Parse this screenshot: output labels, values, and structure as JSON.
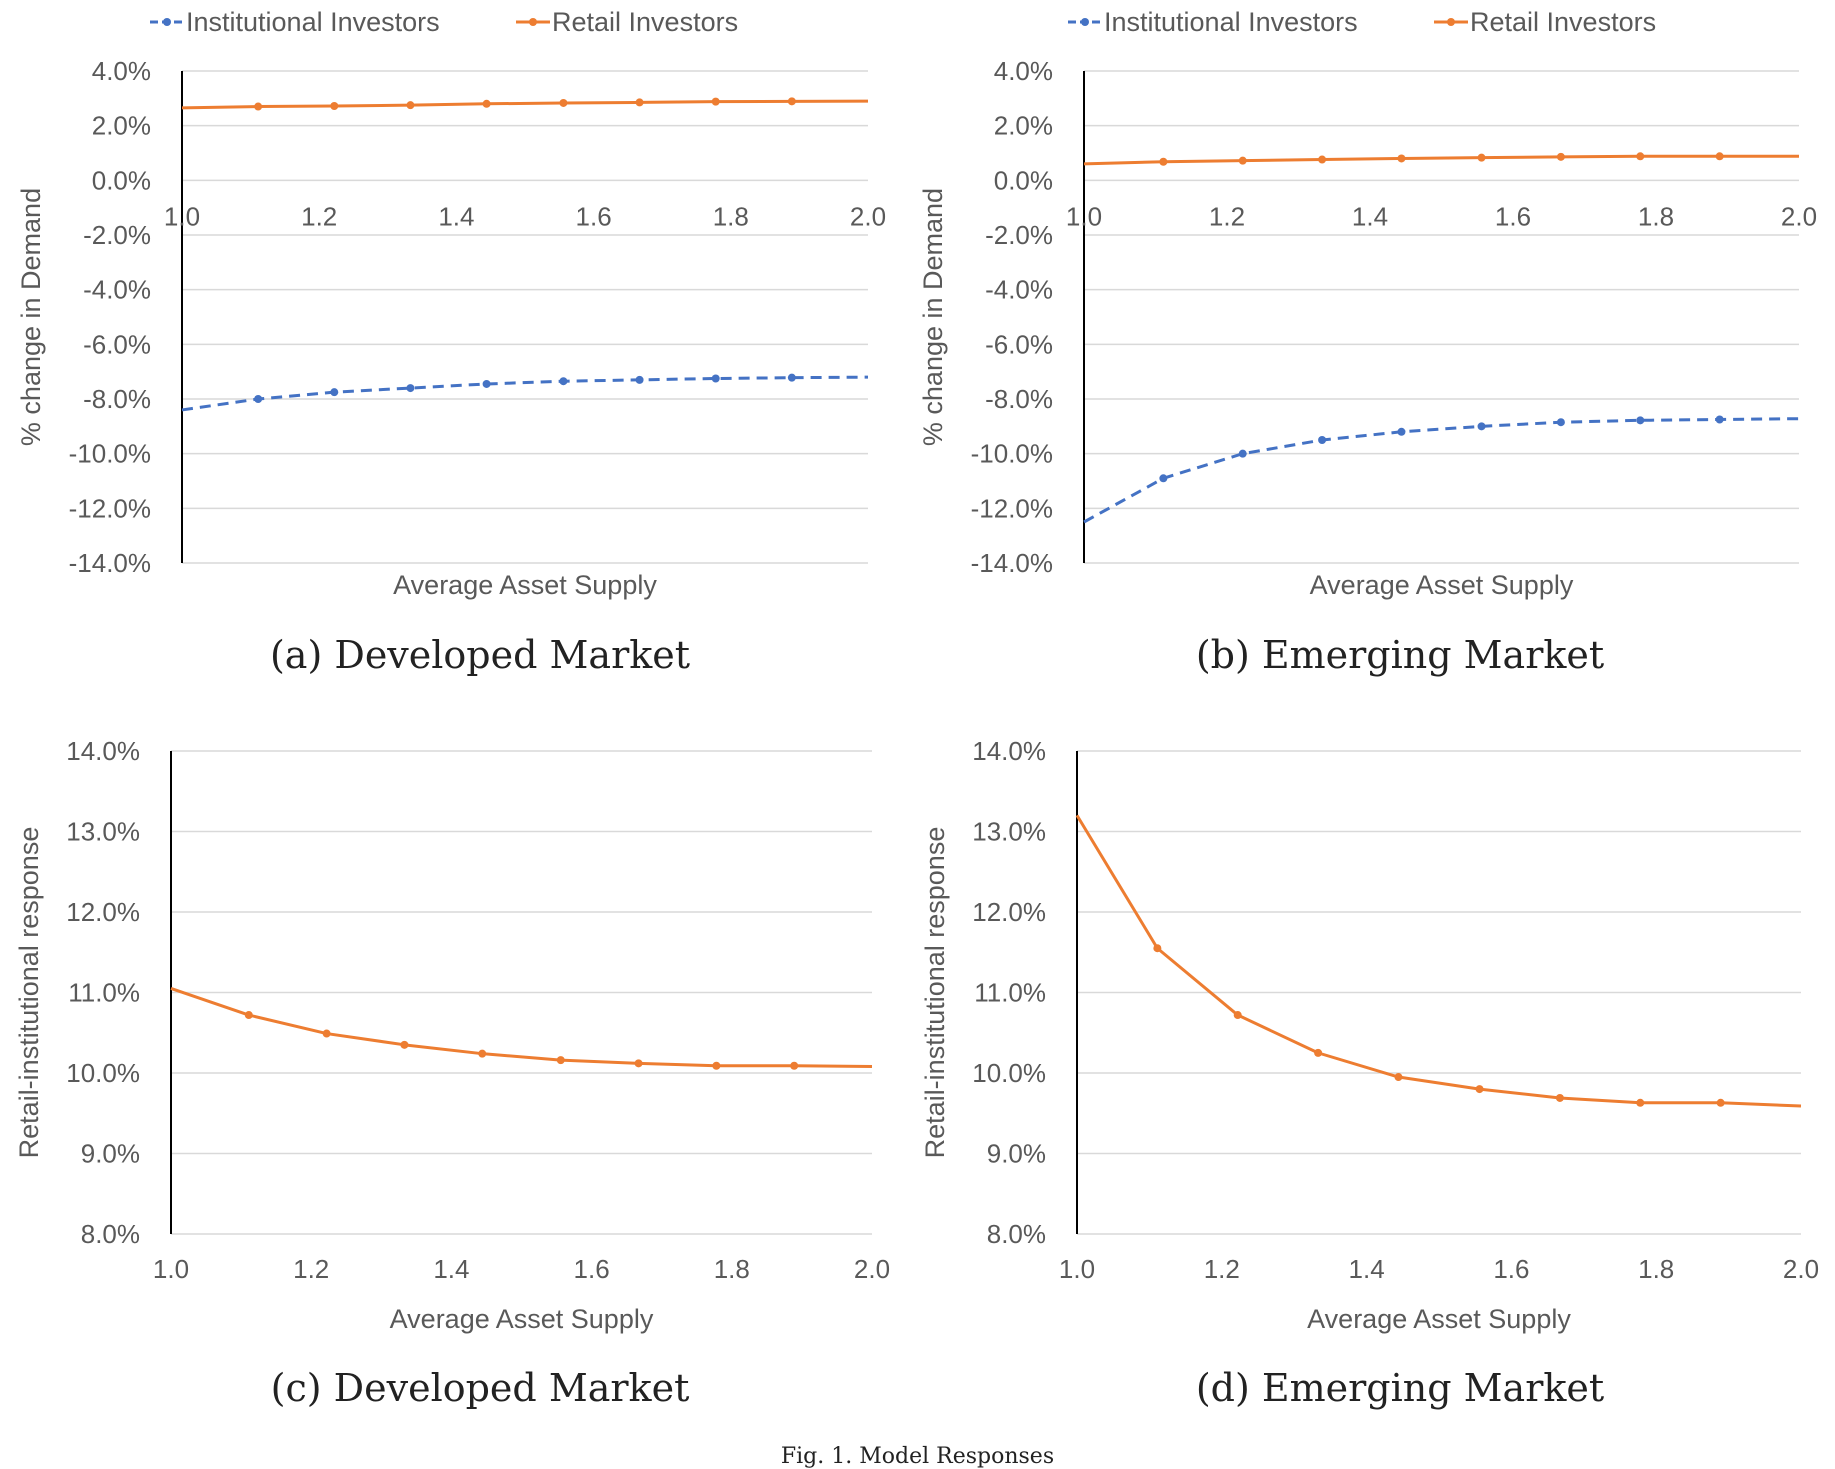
{
  "figure_title": "Fig. 1. Model Responses",
  "captions": [
    "(a) Developed Market",
    "(b) Emerging Market",
    "(c) Developed Market",
    "(d) Emerging Market"
  ],
  "colors": {
    "institutional": "#4472C4",
    "retail": "#ED7D31",
    "grid": "#d9d9d9",
    "axis": "#000000",
    "text": "#595959"
  },
  "chart_data": [
    {
      "type": "line",
      "title": "",
      "xlabel": "Average Asset Supply",
      "ylabel": "% change in Demand",
      "xlim": [
        1.0,
        2.0
      ],
      "ylim": [
        -14.0,
        4.0
      ],
      "x_ticks": [
        "1.0",
        "1.2",
        "1.4",
        "1.6",
        "1.8",
        "2.0"
      ],
      "y_ticks": [
        "4.0%",
        "2.0%",
        "0.0%",
        "-2.0%",
        "-4.0%",
        "-6.0%",
        "-8.0%",
        "-10.0%",
        "-12.0%",
        "-14.0%"
      ],
      "grid": true,
      "legend": "top",
      "series": [
        {
          "name": "Institutional Investors",
          "style": "dashed",
          "x": [
            1.0,
            1.111,
            1.222,
            1.333,
            1.444,
            1.556,
            1.667,
            1.778,
            1.889,
            2.0
          ],
          "values": [
            -8.4,
            -8.0,
            -7.75,
            -7.6,
            -7.45,
            -7.35,
            -7.3,
            -7.25,
            -7.22,
            -7.2
          ]
        },
        {
          "name": "Retail Investors",
          "style": "solid",
          "x": [
            1.0,
            1.111,
            1.222,
            1.333,
            1.444,
            1.556,
            1.667,
            1.778,
            1.889,
            2.0
          ],
          "values": [
            2.65,
            2.7,
            2.72,
            2.75,
            2.8,
            2.83,
            2.85,
            2.88,
            2.89,
            2.9
          ]
        }
      ]
    },
    {
      "type": "line",
      "title": "",
      "xlabel": "Average Asset Supply",
      "ylabel": "% change in Demand",
      "xlim": [
        1.0,
        2.0
      ],
      "ylim": [
        -14.0,
        4.0
      ],
      "x_ticks": [
        "1.0",
        "1.2",
        "1.4",
        "1.6",
        "1.8",
        "2.0"
      ],
      "y_ticks": [
        "4.0%",
        "2.0%",
        "0.0%",
        "-2.0%",
        "-4.0%",
        "-6.0%",
        "-8.0%",
        "-10.0%",
        "-12.0%",
        "-14.0%"
      ],
      "grid": true,
      "legend": "top",
      "series": [
        {
          "name": "Institutional Investors",
          "style": "dashed",
          "x": [
            1.0,
            1.111,
            1.222,
            1.333,
            1.444,
            1.556,
            1.667,
            1.778,
            1.889,
            2.0
          ],
          "values": [
            -12.5,
            -10.9,
            -10.0,
            -9.5,
            -9.2,
            -9.0,
            -8.85,
            -8.78,
            -8.75,
            -8.72
          ]
        },
        {
          "name": "Retail Investors",
          "style": "solid",
          "x": [
            1.0,
            1.111,
            1.222,
            1.333,
            1.444,
            1.556,
            1.667,
            1.778,
            1.889,
            2.0
          ],
          "values": [
            0.6,
            0.68,
            0.72,
            0.76,
            0.8,
            0.83,
            0.86,
            0.88,
            0.88,
            0.88
          ]
        }
      ]
    },
    {
      "type": "line",
      "title": "",
      "xlabel": "Average Asset Supply",
      "ylabel": "Retail-institutional response",
      "xlim": [
        1.0,
        2.0
      ],
      "ylim": [
        8.0,
        14.0
      ],
      "x_ticks": [
        "1.0",
        "1.2",
        "1.4",
        "1.6",
        "1.8",
        "2.0"
      ],
      "y_ticks": [
        "14.0%",
        "13.0%",
        "12.0%",
        "11.0%",
        "10.0%",
        "9.0%",
        "8.0%"
      ],
      "grid": true,
      "series": [
        {
          "style": "solid",
          "x": [
            1.0,
            1.111,
            1.222,
            1.333,
            1.444,
            1.556,
            1.667,
            1.778,
            1.889,
            2.0
          ],
          "values": [
            11.05,
            10.72,
            10.49,
            10.35,
            10.24,
            10.16,
            10.12,
            10.09,
            10.09,
            10.08
          ]
        }
      ]
    },
    {
      "type": "line",
      "title": "",
      "xlabel": "Average Asset Supply",
      "ylabel": "Retail-institutional response",
      "xlim": [
        1.0,
        2.0
      ],
      "ylim": [
        8.0,
        14.0
      ],
      "x_ticks": [
        "1.0",
        "1.2",
        "1.4",
        "1.6",
        "1.8",
        "2.0"
      ],
      "y_ticks": [
        "14.0%",
        "13.0%",
        "12.0%",
        "11.0%",
        "10.0%",
        "9.0%",
        "8.0%"
      ],
      "grid": true,
      "series": [
        {
          "style": "solid",
          "x": [
            1.0,
            1.111,
            1.222,
            1.333,
            1.444,
            1.556,
            1.667,
            1.778,
            1.889,
            2.0
          ],
          "values": [
            13.2,
            11.55,
            10.72,
            10.25,
            9.95,
            9.8,
            9.69,
            9.63,
            9.63,
            9.59
          ]
        }
      ]
    }
  ]
}
